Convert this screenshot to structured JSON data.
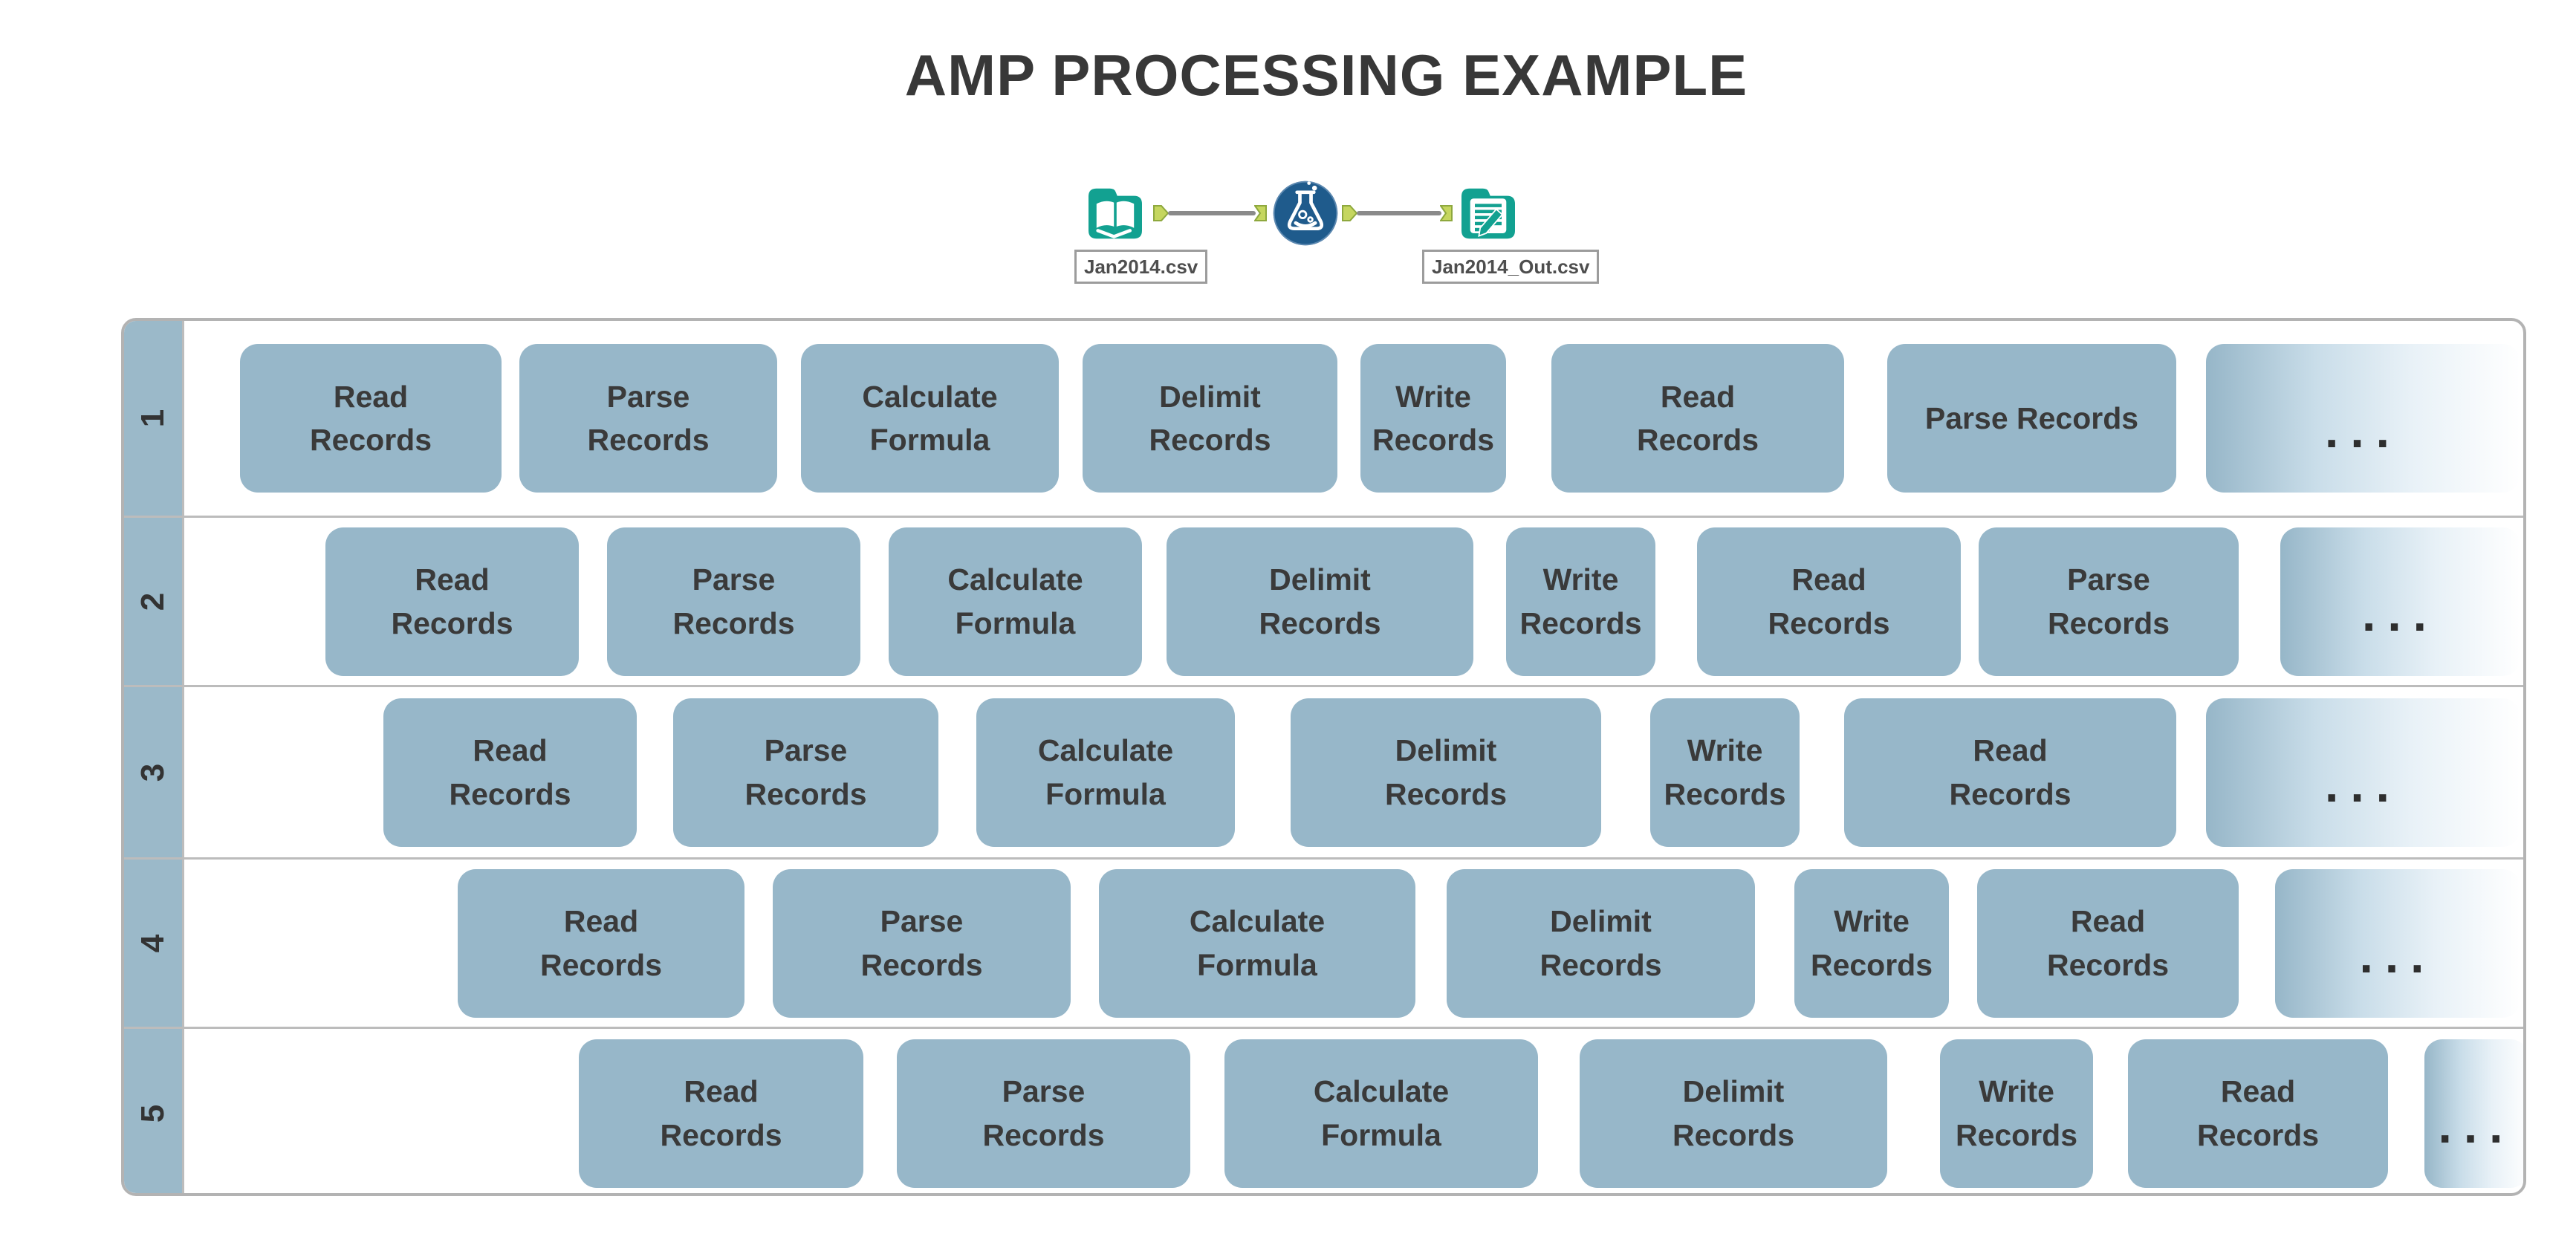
{
  "title": "AMP PROCESSING EXAMPLE",
  "workflow": {
    "input_tool": "input-data-tool",
    "formula_tool": "formula-flask-tool",
    "output_tool": "output-data-tool",
    "input_label": "Jan2014.csv",
    "output_label": "Jan2014_Out.csv"
  },
  "ellipsis": "...",
  "colors": {
    "process_box": "#97b7c9",
    "lane_number_cell": "#9bb9c9",
    "table_border": "#b3b3b3",
    "text": "#3a3a3a",
    "tool_teal": "#12a191",
    "flask_blue": "#1f5b8c",
    "connector_green": "#c5d65f",
    "connector_line_gray": "#8a8a8a"
  },
  "rows": [
    {
      "label": "1",
      "boxes": [
        "Read\nRecords",
        "Parse\nRecords",
        "Calculate\nFormula",
        "Delimit\nRecords",
        "Write\nRecords",
        "Read\nRecords",
        "Parse Records"
      ]
    },
    {
      "label": "2",
      "boxes": [
        "Read\nRecords",
        "Parse\nRecords",
        "Calculate\nFormula",
        "Delimit\nRecords",
        "Write\nRecords",
        "Read\nRecords",
        "Parse\nRecords"
      ]
    },
    {
      "label": "3",
      "boxes": [
        "Read\nRecords",
        "Parse\nRecords",
        "Calculate\nFormula",
        "Delimit\nRecords",
        "Write\nRecords",
        "Read\nRecords"
      ]
    },
    {
      "label": "4",
      "boxes": [
        "Read\nRecords",
        "Parse\nRecords",
        "Calculate\nFormula",
        "Delimit\nRecords",
        "Write\nRecords",
        "Read\nRecords"
      ]
    },
    {
      "label": "5",
      "boxes": [
        "Read\nRecords",
        "Parse\nRecords",
        "Calculate\nFormula",
        "Delimit\nRecords",
        "Write\nRecords",
        "Read\nRecords"
      ]
    }
  ]
}
